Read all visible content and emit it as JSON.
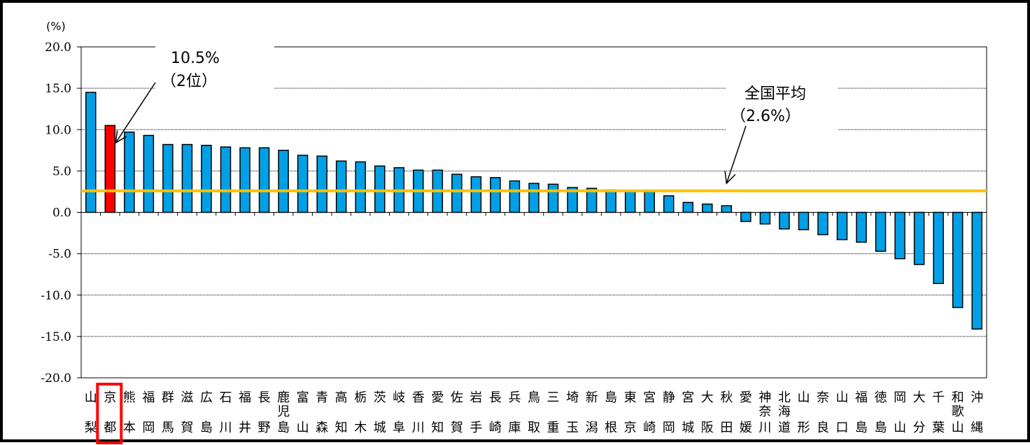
{
  "chart_data": {
    "type": "bar",
    "unit_label": "(%)",
    "ylim": [
      -20,
      20
    ],
    "yticks": [
      20,
      15,
      10,
      5,
      0,
      -5,
      -10,
      -15,
      -20
    ],
    "ytick_labels": [
      "20.0",
      "15.0",
      "10.0",
      "5.0",
      "0.0",
      "-5.0",
      "-10.0",
      "-15.0",
      "-20.0"
    ],
    "grid": true,
    "categories": [
      [
        "山",
        "梨"
      ],
      [
        "京",
        "都"
      ],
      [
        "熊",
        "本"
      ],
      [
        "福",
        "岡"
      ],
      [
        "群",
        "馬"
      ],
      [
        "滋",
        "賀"
      ],
      [
        "広",
        "島"
      ],
      [
        "石",
        "川"
      ],
      [
        "福",
        "井"
      ],
      [
        "長",
        "野"
      ],
      [
        "鹿",
        "児",
        "島"
      ],
      [
        "富",
        "山"
      ],
      [
        "青",
        "森"
      ],
      [
        "高",
        "知"
      ],
      [
        "栃",
        "木"
      ],
      [
        "茨",
        "城"
      ],
      [
        "岐",
        "阜"
      ],
      [
        "香",
        "川"
      ],
      [
        "愛",
        "知"
      ],
      [
        "佐",
        "賀"
      ],
      [
        "岩",
        "手"
      ],
      [
        "長",
        "崎"
      ],
      [
        "兵",
        "庫"
      ],
      [
        "鳥",
        "取"
      ],
      [
        "三",
        "重"
      ],
      [
        "埼",
        "玉"
      ],
      [
        "新",
        "潟"
      ],
      [
        "島",
        "根"
      ],
      [
        "東",
        "京"
      ],
      [
        "宮",
        "崎"
      ],
      [
        "静",
        "岡"
      ],
      [
        "宮",
        "城"
      ],
      [
        "大",
        "阪"
      ],
      [
        "秋",
        "田"
      ],
      [
        "愛",
        "媛"
      ],
      [
        "神",
        "奈",
        "川"
      ],
      [
        "北",
        "海",
        "道"
      ],
      [
        "山",
        "形"
      ],
      [
        "奈",
        "良"
      ],
      [
        "山",
        "口"
      ],
      [
        "福",
        "島"
      ],
      [
        "徳",
        "島"
      ],
      [
        "岡",
        "山"
      ],
      [
        "大",
        "分"
      ],
      [
        "千",
        "葉"
      ],
      [
        "和",
        "歌",
        "山"
      ],
      [
        "沖",
        "縄"
      ]
    ],
    "values": [
      14.5,
      10.5,
      9.7,
      9.3,
      8.2,
      8.2,
      8.1,
      7.9,
      7.8,
      7.8,
      7.5,
      6.9,
      6.8,
      6.2,
      6.1,
      5.6,
      5.4,
      5.1,
      5.1,
      4.6,
      4.3,
      4.2,
      3.8,
      3.5,
      3.4,
      3.0,
      2.9,
      2.7,
      2.6,
      2.5,
      2.0,
      1.2,
      1.0,
      0.8,
      -1.1,
      -1.4,
      -2.0,
      -2.1,
      -2.7,
      -3.3,
      -3.6,
      -4.7,
      -5.6,
      -6.3,
      -8.6,
      -11.5,
      -14.1
    ],
    "highlight_index": 1,
    "bar_color": "#00a0e6",
    "highlight_color": "#ff0000",
    "average_value": 2.6,
    "average_color": "#ffc000",
    "annotations": {
      "kyoto_value": "10.5%",
      "kyoto_rank": "（2位）",
      "average_title": "全国平均",
      "average_value_label": "（2.6%）"
    }
  }
}
